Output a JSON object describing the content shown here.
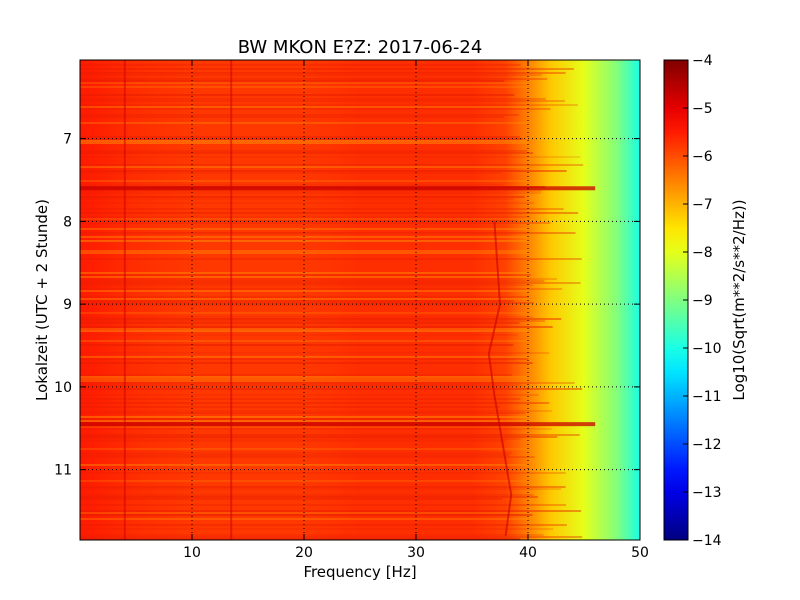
{
  "chart_data": {
    "type": "heatmap",
    "title": "BW MKON E?Z: 2017-06-24",
    "xlabel": "Frequency [Hz]",
    "ylabel": "Lokalzeit (UTC + 2 Stunde)",
    "xlim": [
      0,
      50
    ],
    "ylim": [
      6.05,
      11.85
    ],
    "y_inverted": true,
    "x_ticks": [
      10,
      20,
      30,
      40,
      50
    ],
    "y_ticks": [
      7,
      8,
      9,
      10,
      11
    ],
    "grid": true,
    "colorbar": {
      "label": "Log10(Sqrt(m**2/s**2/Hz))",
      "range": [
        -14,
        -4
      ],
      "ticks": [
        -4,
        -5,
        -6,
        -7,
        -8,
        -9,
        -10,
        -11,
        -12,
        -13,
        -14
      ],
      "colormap": "jet"
    },
    "spectral_profile": {
      "frequency_hz": [
        0,
        5,
        10,
        15,
        20,
        25,
        30,
        35,
        38,
        40,
        42,
        45,
        48,
        50
      ],
      "log10_amplitude": [
        -5.5,
        -5.7,
        -5.8,
        -5.8,
        -5.8,
        -5.7,
        -5.7,
        -5.7,
        -5.9,
        -6.5,
        -7.2,
        -8.0,
        -9.0,
        -10.0
      ]
    },
    "bright_bands_time": [
      7.6,
      10.45
    ],
    "dark_lines_hz": [
      4,
      13.5
    ]
  }
}
